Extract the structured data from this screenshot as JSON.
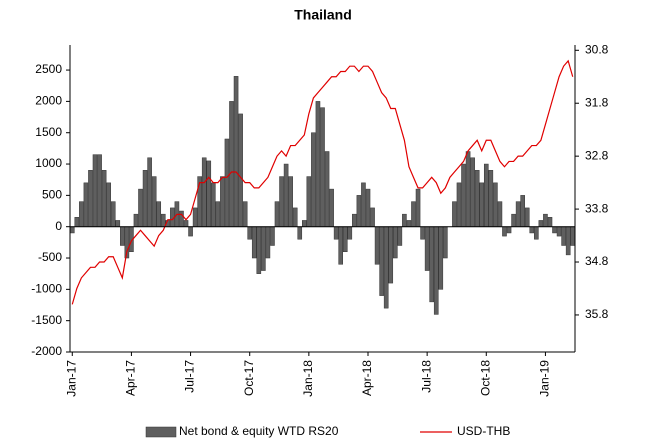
{
  "chart_data": {
    "type": "bar-line",
    "title": "Thailand",
    "categories": [
      "Jan-17",
      null,
      null,
      null,
      null,
      null,
      null,
      null,
      null,
      null,
      null,
      null,
      null,
      "Apr-17",
      null,
      null,
      null,
      null,
      null,
      null,
      null,
      null,
      null,
      null,
      null,
      null,
      "Jul-17",
      null,
      null,
      null,
      null,
      null,
      null,
      null,
      null,
      null,
      null,
      null,
      null,
      "Oct-17",
      null,
      null,
      null,
      null,
      null,
      null,
      null,
      null,
      null,
      null,
      null,
      null,
      "Jan-18",
      null,
      null,
      null,
      null,
      null,
      null,
      null,
      null,
      null,
      null,
      null,
      null,
      "Apr-18",
      null,
      null,
      null,
      null,
      null,
      null,
      null,
      null,
      null,
      null,
      null,
      null,
      "Jul-18",
      null,
      null,
      null,
      null,
      null,
      null,
      null,
      null,
      null,
      null,
      null,
      null,
      "Oct-18",
      null,
      null,
      null,
      null,
      null,
      null,
      null,
      null,
      null,
      null,
      null,
      null,
      "Jan-19",
      null,
      null,
      null,
      null,
      null,
      null
    ],
    "series": [
      {
        "name": "Net bond & equity WTD RS20",
        "type": "bar",
        "color": "#5f5f5f",
        "values": [
          -100,
          150,
          400,
          700,
          900,
          1150,
          1150,
          900,
          700,
          400,
          100,
          -300,
          -500,
          -400,
          200,
          600,
          900,
          1100,
          800,
          400,
          200,
          100,
          300,
          400,
          250,
          100,
          -150,
          300,
          800,
          1100,
          1050,
          700,
          400,
          800,
          1400,
          2000,
          2400,
          1800,
          400,
          -200,
          -500,
          -750,
          -700,
          -500,
          -300,
          400,
          800,
          1000,
          800,
          300,
          -200,
          100,
          800,
          1500,
          2000,
          1900,
          1200,
          600,
          -200,
          -600,
          -400,
          -200,
          200,
          500,
          700,
          600,
          300,
          -600,
          -1100,
          -1300,
          -900,
          -500,
          -300,
          200,
          100,
          400,
          600,
          -200,
          -700,
          -1200,
          -1400,
          -1000,
          -500,
          0,
          400,
          700,
          1000,
          1200,
          1100,
          900,
          700,
          1000,
          900,
          700,
          400,
          -150,
          -100,
          200,
          400,
          500,
          300,
          -100,
          -200,
          100,
          200,
          150,
          -100,
          -150,
          -300,
          -450,
          -300
        ]
      },
      {
        "name": "USD-THB",
        "type": "line",
        "axis": "y2",
        "color": "#e00000",
        "values": [
          35.6,
          35.3,
          35.1,
          35.0,
          34.9,
          34.9,
          34.8,
          34.8,
          34.7,
          34.7,
          34.9,
          35.1,
          34.6,
          34.4,
          34.3,
          34.2,
          34.3,
          34.4,
          34.5,
          34.3,
          34.2,
          34.0,
          34.0,
          33.9,
          33.9,
          34.0,
          33.9,
          33.6,
          33.3,
          33.3,
          33.2,
          33.3,
          33.3,
          33.2,
          33.2,
          33.1,
          33.1,
          33.2,
          33.3,
          33.3,
          33.4,
          33.4,
          33.3,
          33.2,
          33.0,
          32.8,
          32.7,
          32.8,
          32.6,
          32.6,
          32.5,
          32.4,
          32.0,
          31.7,
          31.6,
          31.5,
          31.4,
          31.3,
          31.3,
          31.2,
          31.2,
          31.1,
          31.1,
          31.2,
          31.1,
          31.1,
          31.2,
          31.4,
          31.6,
          31.7,
          31.9,
          31.9,
          32.2,
          32.5,
          33.0,
          33.2,
          33.4,
          33.4,
          33.3,
          33.2,
          33.3,
          33.5,
          33.4,
          33.2,
          33.1,
          33.0,
          32.9,
          32.7,
          32.6,
          32.5,
          32.7,
          32.5,
          32.5,
          32.7,
          32.9,
          33.0,
          32.9,
          32.9,
          32.8,
          32.8,
          32.7,
          32.6,
          32.6,
          32.5,
          32.2,
          31.9,
          31.6,
          31.3,
          31.1,
          31.0,
          31.3
        ]
      }
    ],
    "ylim": [
      -2000,
      2900
    ],
    "yticks": [
      -2000,
      -1500,
      -1000,
      -500,
      0,
      500,
      1000,
      1500,
      2000,
      2500
    ],
    "y2lim": [
      36.5,
      30.7
    ],
    "y2ticks": [
      30.8,
      31.8,
      32.8,
      33.8,
      34.8,
      35.8
    ],
    "legend": "bottom",
    "grid": false
  }
}
